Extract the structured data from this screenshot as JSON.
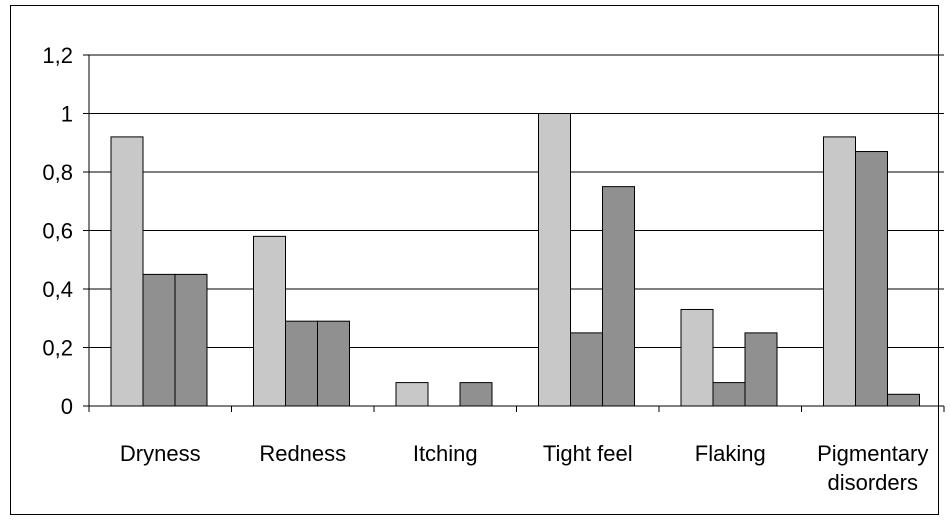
{
  "chart_data": {
    "type": "bar",
    "title": "",
    "xlabel": "",
    "ylabel": "",
    "ylim": [
      0,
      1.2
    ],
    "yticks": [
      "0",
      "0,2",
      "0,4",
      "0,6",
      "0,8",
      "1",
      "1,2"
    ],
    "ytick_values": [
      0,
      0.2,
      0.4,
      0.6,
      0.8,
      1.0,
      1.2
    ],
    "grid": true,
    "legend": "none",
    "categories": [
      [
        "Dryness"
      ],
      [
        "Redness"
      ],
      [
        "Itching"
      ],
      [
        "Tight feel"
      ],
      [
        "Flaking"
      ],
      [
        "Pigmentary",
        "disorders"
      ]
    ],
    "series": [
      {
        "color": "#c8c8c8",
        "values": [
          0.92,
          0.58,
          0.08,
          1.0,
          0.33,
          0.92
        ]
      },
      {
        "color": "#909090",
        "values": [
          0.45,
          0.29,
          0.0,
          0.25,
          0.08,
          0.87
        ]
      },
      {
        "color": "#909090",
        "values": [
          0.45,
          0.29,
          0.08,
          0.75,
          0.25,
          0.04
        ]
      }
    ]
  }
}
